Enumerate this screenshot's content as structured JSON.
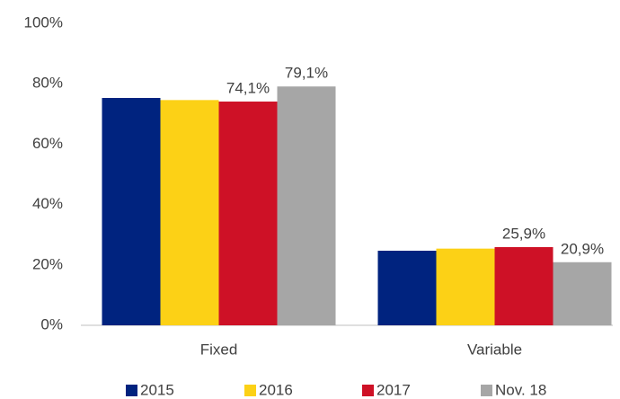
{
  "chart_data": {
    "type": "bar",
    "categories": [
      "Fixed",
      "Variable"
    ],
    "series": [
      {
        "name": "2015",
        "color": "#00237f",
        "values": [
          75.3,
          24.7
        ]
      },
      {
        "name": "2016",
        "color": "#fcd116",
        "values": [
          74.6,
          25.4
        ]
      },
      {
        "name": "2017",
        "color": "#ce1126",
        "values": [
          74.1,
          25.9
        ],
        "value_labels": [
          "74,1%",
          "25,9%"
        ]
      },
      {
        "name": "Nov. 18",
        "color": "#a6a6a6",
        "values": [
          79.1,
          20.9
        ],
        "value_labels": [
          "79,1%",
          "20,9%"
        ]
      }
    ],
    "ylim": [
      0,
      100
    ],
    "yticks": [
      {
        "value": 0,
        "label": "0%"
      },
      {
        "value": 20,
        "label": "20%"
      },
      {
        "value": 40,
        "label": "40%"
      },
      {
        "value": 60,
        "label": "60%"
      },
      {
        "value": 80,
        "label": "80%"
      },
      {
        "value": 100,
        "label": "100%"
      }
    ],
    "grid": false,
    "legend": "bottom"
  }
}
